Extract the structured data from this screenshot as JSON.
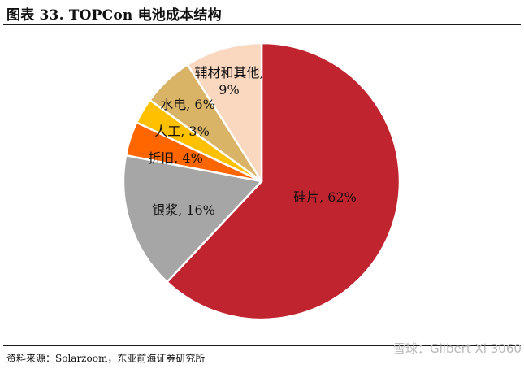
{
  "header": {
    "title": "图表 33. TOPCon 电池成本结构"
  },
  "chart_data": {
    "type": "pie",
    "title": "图表 33. TOPCon 电池成本结构",
    "slices": [
      {
        "label": "硅片",
        "value": 62,
        "value_label": "62%",
        "color": "#C0242F"
      },
      {
        "label": "银浆",
        "value": 16,
        "value_label": "16%",
        "color": "#A6A6A6"
      },
      {
        "label": "折旧",
        "value": 4,
        "value_label": "4%",
        "color": "#FF6600"
      },
      {
        "label": "人工",
        "value": 3,
        "value_label": "3%",
        "color": "#FFC000"
      },
      {
        "label": "水电",
        "value": 6,
        "value_label": "6%",
        "color": "#D9B366"
      },
      {
        "label": "辅材和其他",
        "value": 9,
        "value_label": "9%",
        "color": "#FAD7BF"
      }
    ],
    "start": "12 o'clock",
    "direction": "clockwise",
    "legend": "none",
    "data_labels": "category, percent"
  },
  "footer": {
    "source": "资料来源：Solarzoom，东亚前海证券研究所"
  },
  "watermark": {
    "text": "雪球：Gilbert Xi 3060"
  }
}
